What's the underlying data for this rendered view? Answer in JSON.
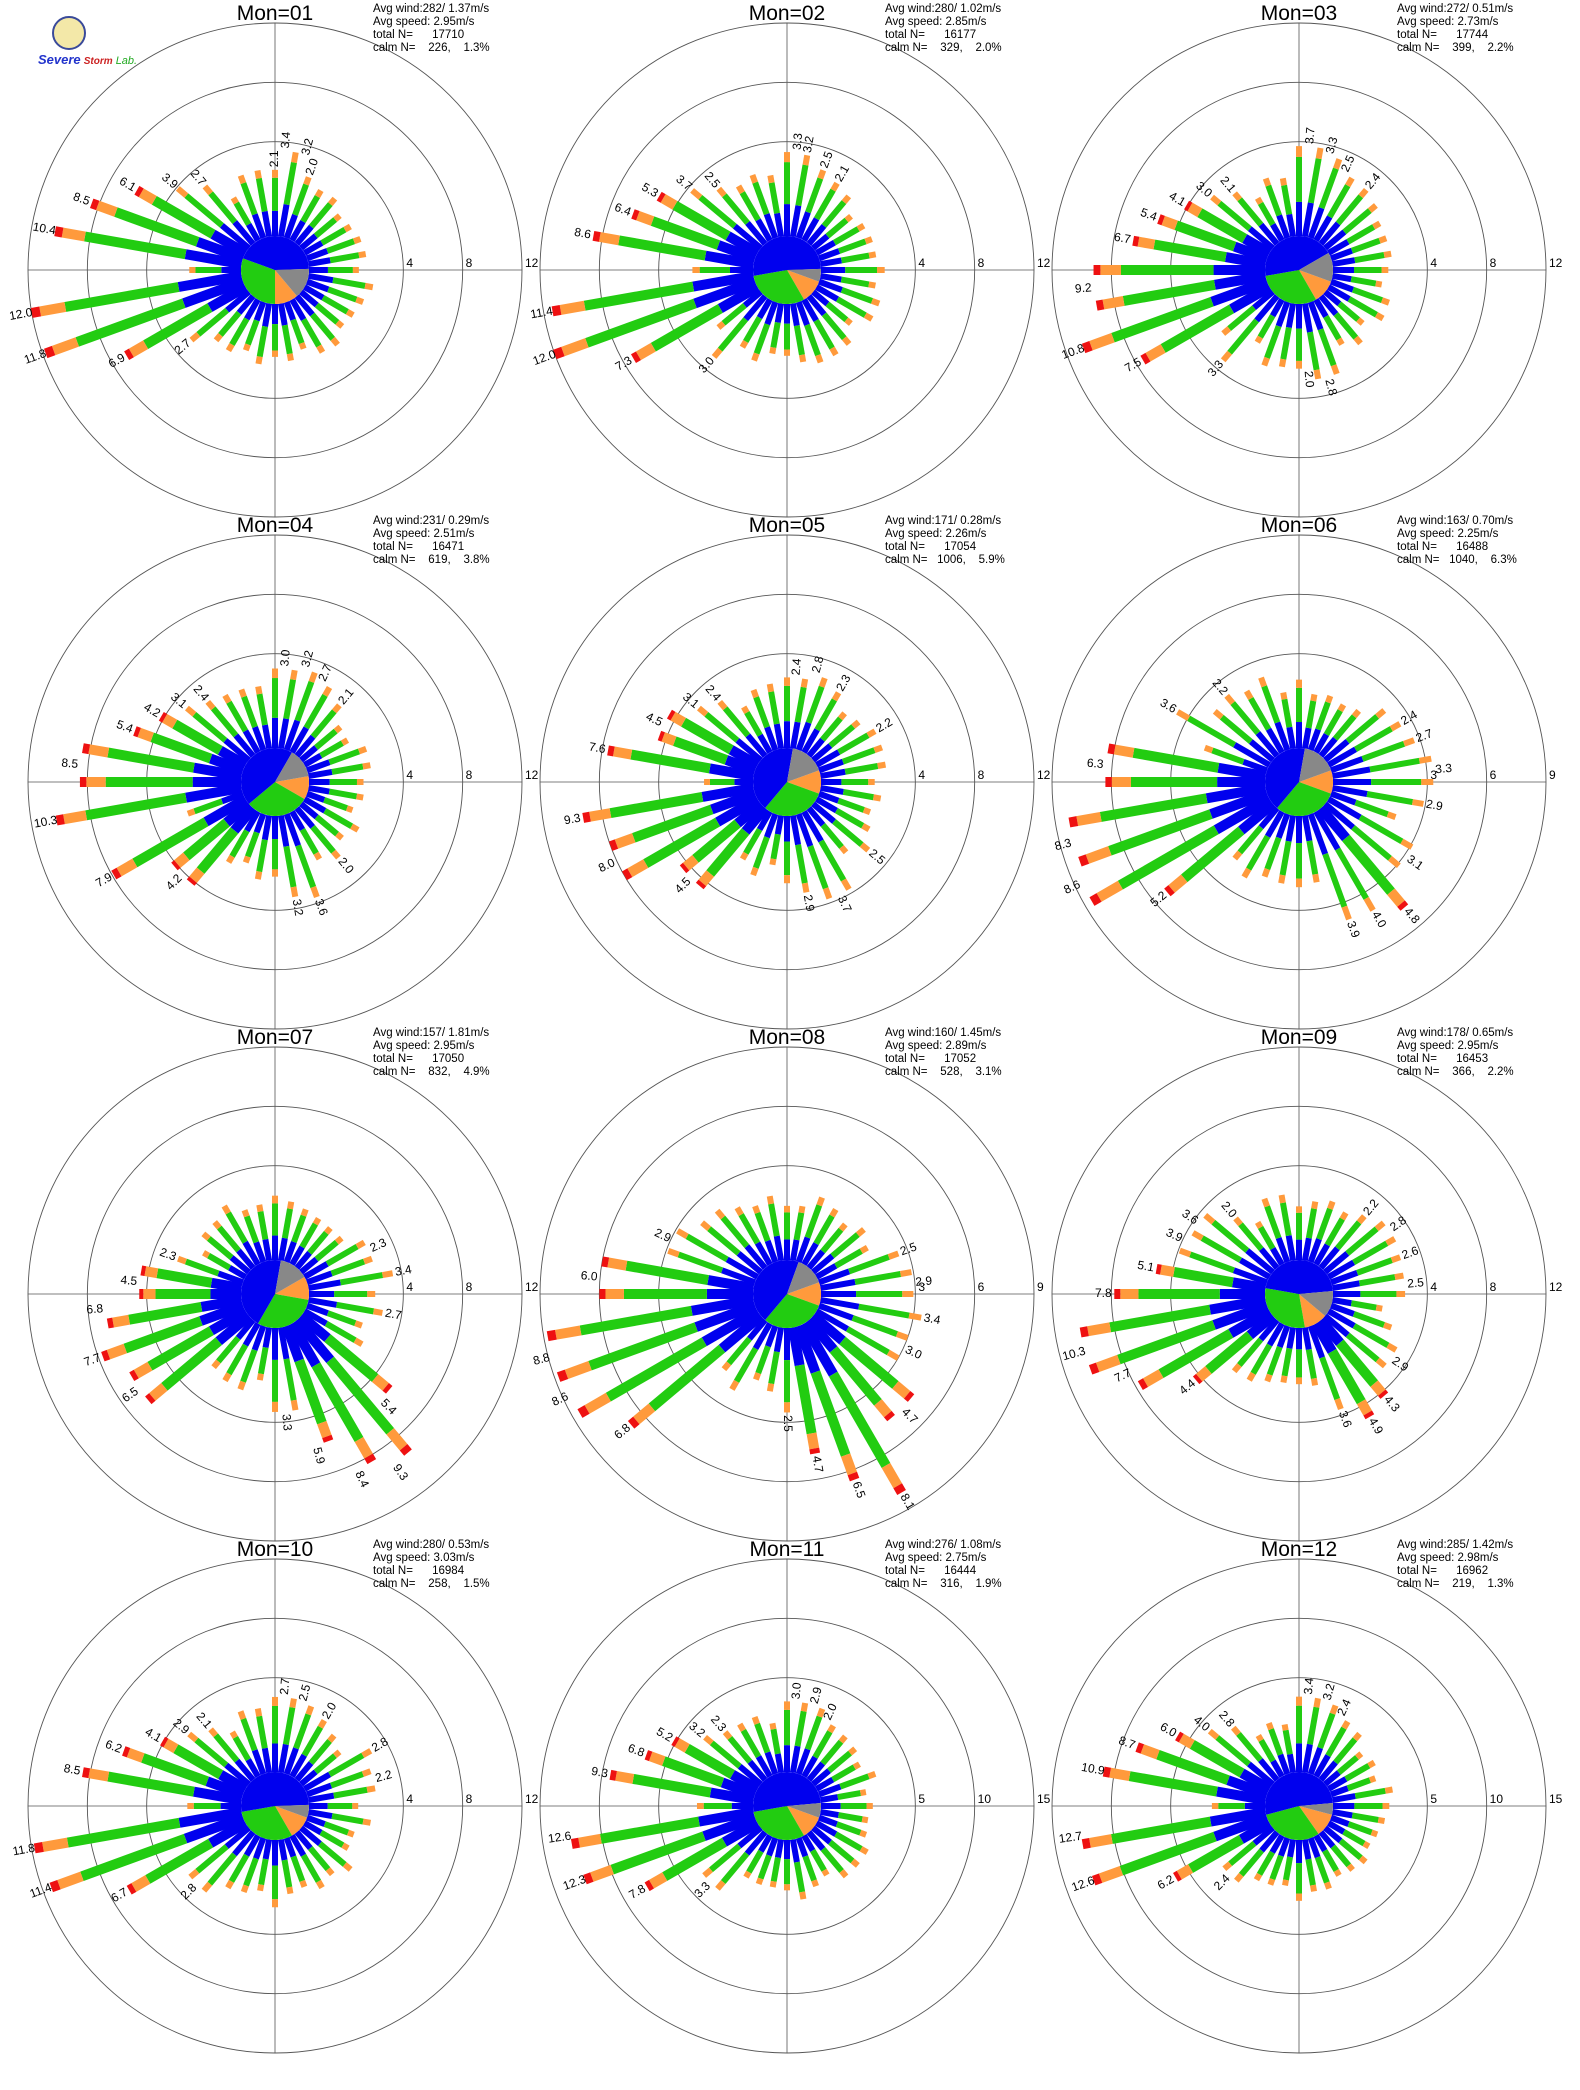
{
  "logo": {
    "line1": "Severe",
    "line2": "Storm",
    "line3": "Lab."
  },
  "colors": {
    "c1": "#0000ee",
    "c2": "#22cc11",
    "c3": "#ff9a3c",
    "c4": "#ee1111",
    "c5": "#9900cc",
    "calm": "#888888"
  },
  "chart_data": [
    {
      "type": "windrose",
      "title": "Mon=01",
      "avg_wind": "Avg wind:282/ 1.37m/s",
      "avg_speed": "Avg speed: 2.95m/s",
      "total_n": "total N=      17710",
      "calm_n": "calm N=    226,    1.3%",
      "rings": [
        4,
        8,
        12
      ],
      "ring_labels": [
        "4",
        "8",
        "12"
      ],
      "dominant_dir": 250,
      "calm_angles": [
        88,
        140
      ],
      "labels": [
        {
          "dir": 5,
          "value": "3.4"
        },
        {
          "dir": 15,
          "value": "3.2"
        },
        {
          "dir": 0,
          "value": "2.1"
        },
        {
          "dir": 20,
          "value": "2.0"
        },
        {
          "dir": 320,
          "value": "2.7"
        },
        {
          "dir": 310,
          "value": "3.9"
        },
        {
          "dir": 300,
          "value": "6.1"
        },
        {
          "dir": 290,
          "value": "8.5"
        },
        {
          "dir": 280,
          "value": "10.4"
        },
        {
          "dir": 260,
          "value": "12.0"
        },
        {
          "dir": 250,
          "value": "11.8"
        },
        {
          "dir": 240,
          "value": "6.9"
        },
        {
          "dir": 230,
          "value": "2.7"
        }
      ]
    },
    {
      "type": "windrose",
      "title": "Mon=02",
      "avg_wind": "Avg wind:280/ 1.02m/s",
      "avg_speed": "Avg speed: 2.85m/s",
      "total_n": "total N=      16177",
      "calm_n": "calm N=    329,    2.0%",
      "rings": [
        4,
        8,
        12
      ],
      "ring_labels": [
        "4",
        "8",
        "12"
      ],
      "dominant_dir": 250,
      "calm_angles": [
        88,
        110
      ],
      "labels": [
        {
          "dir": 5,
          "value": "3.3"
        },
        {
          "dir": 10,
          "value": "3.2"
        },
        {
          "dir": 20,
          "value": "2.5"
        },
        {
          "dir": 30,
          "value": "2.1"
        },
        {
          "dir": 320,
          "value": "2.5"
        },
        {
          "dir": 310,
          "value": "3.7"
        },
        {
          "dir": 300,
          "value": "5.3"
        },
        {
          "dir": 290,
          "value": "6.4"
        },
        {
          "dir": 280,
          "value": "8.6"
        },
        {
          "dir": 260,
          "value": "11.4"
        },
        {
          "dir": 250,
          "value": "12.0"
        },
        {
          "dir": 240,
          "value": "7.3"
        },
        {
          "dir": 220,
          "value": "3.0"
        }
      ]
    },
    {
      "type": "windrose",
      "title": "Mon=03",
      "avg_wind": "Avg wind:272/ 0.51m/s",
      "avg_speed": "Avg speed: 2.73m/s",
      "total_n": "total N=      17744",
      "calm_n": "calm N=    399,    2.2%",
      "rings": [
        4,
        8,
        12
      ],
      "ring_labels": [
        "4",
        "8",
        "12"
      ],
      "dominant_dir": 255,
      "calm_angles": [
        60,
        110
      ],
      "labels": [
        {
          "dir": 5,
          "value": "3.7"
        },
        {
          "dir": 15,
          "value": "3.3"
        },
        {
          "dir": 25,
          "value": "2.5"
        },
        {
          "dir": 40,
          "value": "2.4"
        },
        {
          "dir": 320,
          "value": "2.1"
        },
        {
          "dir": 310,
          "value": "3.0"
        },
        {
          "dir": 300,
          "value": "4.1"
        },
        {
          "dir": 290,
          "value": "5.4"
        },
        {
          "dir": 280,
          "value": "6.7"
        },
        {
          "dir": 265,
          "value": "9.2"
        },
        {
          "dir": 250,
          "value": "10.8"
        },
        {
          "dir": 240,
          "value": "7.5"
        },
        {
          "dir": 220,
          "value": "3.3"
        },
        {
          "dir": 165,
          "value": "2.8"
        },
        {
          "dir": 175,
          "value": "2.0"
        }
      ]
    },
    {
      "type": "windrose",
      "title": "Mon=04",
      "avg_wind": "Avg wind:231/ 0.29m/s",
      "avg_speed": "Avg speed: 2.51m/s",
      "total_n": "total N=      16471",
      "calm_n": "calm N=    619,    3.8%",
      "rings": [
        4,
        8,
        12
      ],
      "ring_labels": [
        "4",
        "8",
        "12"
      ],
      "dominant_dir": 255,
      "calm_angles": [
        30,
        80
      ],
      "labels": [
        {
          "dir": 5,
          "value": "3.0"
        },
        {
          "dir": 15,
          "value": "3.2"
        },
        {
          "dir": 25,
          "value": "2.7"
        },
        {
          "dir": 40,
          "value": "2.1"
        },
        {
          "dir": 320,
          "value": "2.4"
        },
        {
          "dir": 310,
          "value": "3.1"
        },
        {
          "dir": 300,
          "value": "4.2"
        },
        {
          "dir": 290,
          "value": "5.4"
        },
        {
          "dir": 275,
          "value": "8.5"
        },
        {
          "dir": 260,
          "value": "10.3"
        },
        {
          "dir": 240,
          "value": "7.9"
        },
        {
          "dir": 225,
          "value": "4.2"
        },
        {
          "dir": 170,
          "value": "3.2"
        },
        {
          "dir": 160,
          "value": "3.6"
        },
        {
          "dir": 140,
          "value": "2.0"
        }
      ]
    },
    {
      "type": "windrose",
      "title": "Mon=05",
      "avg_wind": "Avg wind:171/ 0.28m/s",
      "avg_speed": "Avg speed: 2.26m/s",
      "total_n": "total N=      17054",
      "calm_n": "calm N=   1006,    5.9%",
      "rings": [
        4,
        8,
        12
      ],
      "ring_labels": [
        "4",
        "8",
        "12"
      ],
      "dominant_dir": 245,
      "calm_angles": [
        10,
        70
      ],
      "labels": [
        {
          "dir": 5,
          "value": "2.4"
        },
        {
          "dir": 15,
          "value": "2.8"
        },
        {
          "dir": 30,
          "value": "2.3"
        },
        {
          "dir": 60,
          "value": "2.2"
        },
        {
          "dir": 320,
          "value": "2.4"
        },
        {
          "dir": 310,
          "value": "3.1"
        },
        {
          "dir": 295,
          "value": "4.5"
        },
        {
          "dir": 280,
          "value": "7.6"
        },
        {
          "dir": 260,
          "value": "9.3"
        },
        {
          "dir": 245,
          "value": "8.0"
        },
        {
          "dir": 225,
          "value": "4.5"
        },
        {
          "dir": 170,
          "value": "2.9"
        },
        {
          "dir": 155,
          "value": "3.7"
        },
        {
          "dir": 130,
          "value": "2.5"
        }
      ]
    },
    {
      "type": "windrose",
      "title": "Mon=06",
      "avg_wind": "Avg wind:163/ 0.70m/s",
      "avg_speed": "Avg speed: 2.25m/s",
      "total_n": "total N=      16488",
      "calm_n": "calm N=   1040,    6.3%",
      "rings": [
        3,
        6,
        9
      ],
      "ring_labels": [
        "3",
        "6",
        "9"
      ],
      "dominant_dir": 245,
      "calm_angles": [
        10,
        70
      ],
      "labels": [
        {
          "dir": 60,
          "value": "2.4"
        },
        {
          "dir": 70,
          "value": "2.7"
        },
        {
          "dir": 85,
          "value": "3.3"
        },
        {
          "dir": 100,
          "value": "2.9"
        },
        {
          "dir": 320,
          "value": "2.2"
        },
        {
          "dir": 300,
          "value": "3.6"
        },
        {
          "dir": 275,
          "value": "6.3"
        },
        {
          "dir": 255,
          "value": "8.3"
        },
        {
          "dir": 245,
          "value": "8.6"
        },
        {
          "dir": 230,
          "value": "5.2"
        },
        {
          "dir": 160,
          "value": "3.9"
        },
        {
          "dir": 150,
          "value": "4.0"
        },
        {
          "dir": 140,
          "value": "4.8"
        },
        {
          "dir": 125,
          "value": "3.1"
        }
      ]
    },
    {
      "type": "windrose",
      "title": "Mon=07",
      "avg_wind": "Avg wind:157/ 1.81m/s",
      "avg_speed": "Avg speed: 2.95m/s",
      "total_n": "total N=      17050",
      "calm_n": "calm N=    832,    4.9%",
      "rings": [
        4,
        8,
        12
      ],
      "ring_labels": [
        "4",
        "8",
        "12"
      ],
      "dominant_dir": 150,
      "calm_angles": [
        10,
        60
      ],
      "labels": [
        {
          "dir": 65,
          "value": "2.3"
        },
        {
          "dir": 80,
          "value": "3.4"
        },
        {
          "dir": 100,
          "value": "2.7"
        },
        {
          "dir": 290,
          "value": "2.3"
        },
        {
          "dir": 275,
          "value": "4.5"
        },
        {
          "dir": 265,
          "value": "6.8"
        },
        {
          "dir": 250,
          "value": "7.7"
        },
        {
          "dir": 235,
          "value": "6.5"
        },
        {
          "dir": 175,
          "value": "3.3"
        },
        {
          "dir": 165,
          "value": "5.9"
        },
        {
          "dir": 155,
          "value": "8.4"
        },
        {
          "dir": 145,
          "value": "9.3"
        },
        {
          "dir": 135,
          "value": "5.4"
        }
      ]
    },
    {
      "type": "windrose",
      "title": "Mon=08",
      "avg_wind": "Avg wind:160/ 1.45m/s",
      "avg_speed": "Avg speed: 2.89m/s",
      "total_n": "total N=      17052",
      "calm_n": "calm N=    528,    3.1%",
      "rings": [
        3,
        6,
        9
      ],
      "ring_labels": [
        "3",
        "6",
        "9"
      ],
      "dominant_dir": 160,
      "calm_angles": [
        20,
        70
      ],
      "labels": [
        {
          "dir": 70,
          "value": "2.5"
        },
        {
          "dir": 85,
          "value": "2.9"
        },
        {
          "dir": 100,
          "value": "3.4"
        },
        {
          "dir": 115,
          "value": "3.0"
        },
        {
          "dir": 295,
          "value": "2.9"
        },
        {
          "dir": 275,
          "value": "6.0"
        },
        {
          "dir": 255,
          "value": "8.8"
        },
        {
          "dir": 245,
          "value": "8.6"
        },
        {
          "dir": 230,
          "value": "6.8"
        },
        {
          "dir": 180,
          "value": "2.5"
        },
        {
          "dir": 170,
          "value": "4.7"
        },
        {
          "dir": 160,
          "value": "6.5"
        },
        {
          "dir": 150,
          "value": "8.1"
        },
        {
          "dir": 135,
          "value": "4.7"
        }
      ]
    },
    {
      "type": "windrose",
      "title": "Mon=09",
      "avg_wind": "Avg wind:178/ 0.65m/s",
      "avg_speed": "Avg speed: 2.95m/s",
      "total_n": "total N=      16453",
      "calm_n": "calm N=    366,    2.2%",
      "rings": [
        4,
        8,
        12
      ],
      "ring_labels": [
        "4",
        "8",
        "12"
      ],
      "dominant_dir": 255,
      "calm_angles": [
        85,
        130
      ],
      "labels": [
        {
          "dir": 40,
          "value": "2.2"
        },
        {
          "dir": 55,
          "value": "2.8"
        },
        {
          "dir": 70,
          "value": "2.6"
        },
        {
          "dir": 85,
          "value": "2.5"
        },
        {
          "dir": 320,
          "value": "2.0"
        },
        {
          "dir": 305,
          "value": "3.6"
        },
        {
          "dir": 295,
          "value": "3.9"
        },
        {
          "dir": 280,
          "value": "5.1"
        },
        {
          "dir": 270,
          "value": "7.8"
        },
        {
          "dir": 255,
          "value": "10.3"
        },
        {
          "dir": 245,
          "value": "7.7"
        },
        {
          "dir": 230,
          "value": "4.4"
        },
        {
          "dir": 160,
          "value": "3.6"
        },
        {
          "dir": 150,
          "value": "4.9"
        },
        {
          "dir": 140,
          "value": "4.3"
        },
        {
          "dir": 125,
          "value": "2.9"
        }
      ]
    },
    {
      "type": "windrose",
      "title": "Mon=10",
      "avg_wind": "Avg wind:280/ 0.53m/s",
      "avg_speed": "Avg speed: 3.03m/s",
      "total_n": "total N=      16984",
      "calm_n": "calm N=    258,    1.5%",
      "rings": [
        4,
        8,
        12
      ],
      "ring_labels": [
        "4",
        "8",
        "12"
      ],
      "dominant_dir": 255,
      "calm_angles": [
        88,
        110
      ],
      "labels": [
        {
          "dir": 5,
          "value": "2.7"
        },
        {
          "dir": 15,
          "value": "2.5"
        },
        {
          "dir": 30,
          "value": "2.0"
        },
        {
          "dir": 60,
          "value": "2.8"
        },
        {
          "dir": 75,
          "value": "2.2"
        },
        {
          "dir": 320,
          "value": "2.1"
        },
        {
          "dir": 310,
          "value": "2.9"
        },
        {
          "dir": 300,
          "value": "4.1"
        },
        {
          "dir": 290,
          "value": "6.2"
        },
        {
          "dir": 280,
          "value": "8.5"
        },
        {
          "dir": 260,
          "value": "11.8"
        },
        {
          "dir": 250,
          "value": "11.4"
        },
        {
          "dir": 240,
          "value": "6.7"
        },
        {
          "dir": 225,
          "value": "2.8"
        }
      ]
    },
    {
      "type": "windrose",
      "title": "Mon=11",
      "avg_wind": "Avg wind:276/ 1.08m/s",
      "avg_speed": "Avg speed: 2.75m/s",
      "total_n": "total N=      16444",
      "calm_n": "calm N=    316,    1.9%",
      "rings": [
        5,
        10,
        15
      ],
      "ring_labels": [
        "5",
        "10",
        "15"
      ],
      "dominant_dir": 255,
      "calm_angles": [
        85,
        110
      ],
      "labels": [
        {
          "dir": 5,
          "value": "3.0"
        },
        {
          "dir": 15,
          "value": "2.9"
        },
        {
          "dir": 25,
          "value": "2.0"
        },
        {
          "dir": 320,
          "value": "2.3"
        },
        {
          "dir": 310,
          "value": "3.2"
        },
        {
          "dir": 300,
          "value": "5.2"
        },
        {
          "dir": 290,
          "value": "6.8"
        },
        {
          "dir": 280,
          "value": "9.3"
        },
        {
          "dir": 262,
          "value": "12.6"
        },
        {
          "dir": 250,
          "value": "12.3"
        },
        {
          "dir": 240,
          "value": "7.8"
        },
        {
          "dir": 225,
          "value": "3.3"
        }
      ]
    },
    {
      "type": "windrose",
      "title": "Mon=12",
      "avg_wind": "Avg wind:285/ 1.42m/s",
      "avg_speed": "Avg speed: 2.98m/s",
      "total_n": "total N=      16962",
      "calm_n": "calm N=    219,    1.3%",
      "rings": [
        5,
        10,
        15
      ],
      "ring_labels": [
        "5",
        "10",
        "15"
      ],
      "dominant_dir": 255,
      "calm_angles": [
        85,
        105
      ],
      "labels": [
        {
          "dir": 5,
          "value": "3.4"
        },
        {
          "dir": 15,
          "value": "3.2"
        },
        {
          "dir": 25,
          "value": "2.4"
        },
        {
          "dir": 320,
          "value": "2.8"
        },
        {
          "dir": 310,
          "value": "4.0"
        },
        {
          "dir": 300,
          "value": "6.0"
        },
        {
          "dir": 290,
          "value": "8.7"
        },
        {
          "dir": 280,
          "value": "10.9"
        },
        {
          "dir": 262,
          "value": "12.7"
        },
        {
          "dir": 250,
          "value": "12.6"
        },
        {
          "dir": 240,
          "value": "6.2"
        },
        {
          "dir": 225,
          "value": "2.4"
        }
      ]
    }
  ]
}
